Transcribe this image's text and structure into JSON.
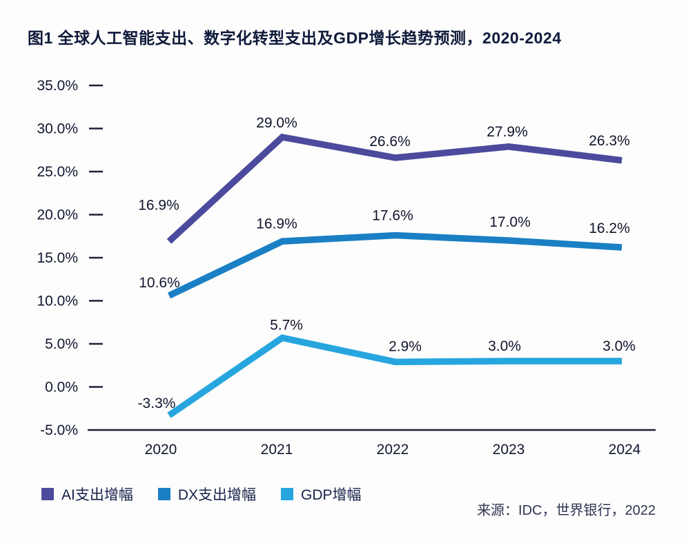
{
  "figure": {
    "title": "图1 全球人工智能支出、数字化转型支出及GDP增长趋势预测，2020-2024",
    "source": "来源：IDC，世界银行，2022"
  },
  "legend": {
    "items": [
      {
        "label": "AI支出增幅",
        "color": "#4c4a9c"
      },
      {
        "label": "DX支出增幅",
        "color": "#1b7fc4"
      },
      {
        "label": "GDP增幅",
        "color": "#27a5de"
      }
    ]
  },
  "chart_data": {
    "type": "line",
    "title": "图1 全球人工智能支出、数字化转型支出及GDP增长趋势预测，2020-2024",
    "categories": [
      "2020",
      "2021",
      "2022",
      "2023",
      "2024"
    ],
    "series": [
      {
        "name": "AI支出增幅",
        "color": "#4c4a9c",
        "values": [
          16.9,
          29.0,
          26.6,
          27.9,
          26.3
        ]
      },
      {
        "name": "DX支出增幅",
        "color": "#1b7fc4",
        "values": [
          10.6,
          16.9,
          17.6,
          17.0,
          16.2
        ]
      },
      {
        "name": "GDP增幅",
        "color": "#27a5de",
        "values": [
          -3.3,
          5.7,
          2.9,
          3.0,
          3.0
        ]
      }
    ],
    "xlabel": "",
    "ylabel": "",
    "ylim": [
      -5,
      35
    ],
    "ytick_step": 5,
    "ytick_format": "percent_one_decimal",
    "grid": false,
    "value_labels": true,
    "legend_position": "bottom-left"
  },
  "colors": {
    "text": "#10172e",
    "tick_label": "#10172e",
    "value_label": "#10152b",
    "axis_line": "#1c2233",
    "background": "#fdfdfe"
  }
}
